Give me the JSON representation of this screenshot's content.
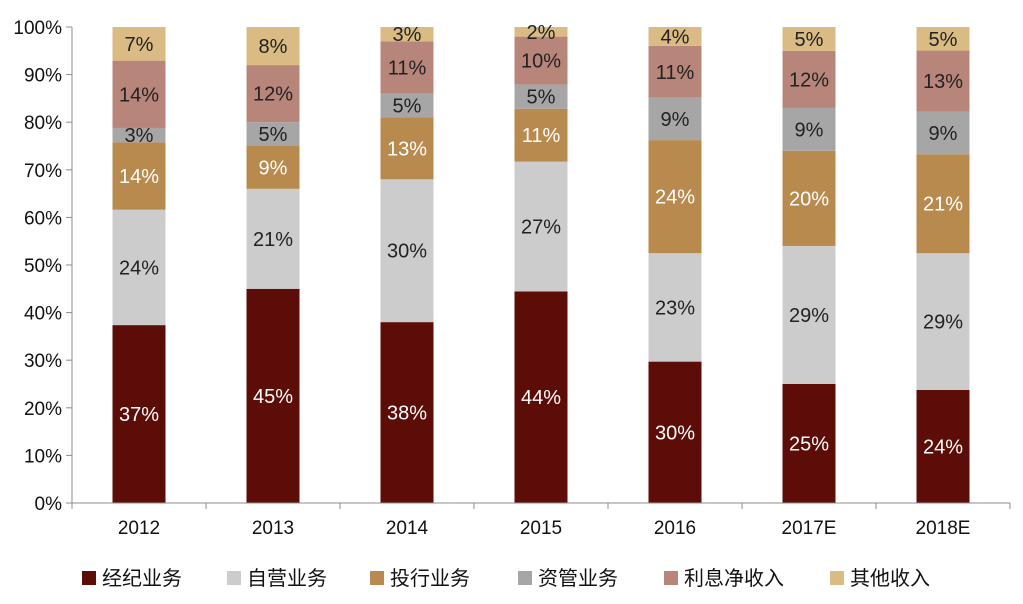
{
  "chart_data": {
    "type": "bar",
    "stacked": true,
    "categories": [
      "2012",
      "2013",
      "2014",
      "2015",
      "2016",
      "2017E",
      "2018E"
    ],
    "series": [
      {
        "name": "经纪业务",
        "color": "#5c0d08",
        "label_color": "#ffffff",
        "values": [
          37,
          45,
          38,
          44,
          30,
          25,
          24
        ]
      },
      {
        "name": "自营业务",
        "color": "#cccccc",
        "label_color": "#222222",
        "values": [
          24,
          21,
          30,
          27,
          23,
          29,
          29
        ]
      },
      {
        "name": "投行业务",
        "color": "#b88a4e",
        "label_color": "#ffffff",
        "values": [
          14,
          9,
          13,
          11,
          24,
          20,
          21
        ]
      },
      {
        "name": "资管业务",
        "color": "#a6a6a6",
        "label_color": "#222222",
        "values": [
          3,
          5,
          5,
          5,
          9,
          9,
          9
        ]
      },
      {
        "name": "利息净收入",
        "color": "#b7857a",
        "label_color": "#222222",
        "values": [
          14,
          12,
          11,
          10,
          11,
          12,
          13
        ]
      },
      {
        "name": "其他收入",
        "color": "#d9bb83",
        "label_color": "#222222",
        "values": [
          7,
          8,
          3,
          2,
          4,
          5,
          5
        ]
      }
    ],
    "data_labels": [
      [
        "37%",
        "45%",
        "38%",
        "44%",
        "30%",
        "25%",
        "24%"
      ],
      [
        "24%",
        "21%",
        "30%",
        "27%",
        "23%",
        "29%",
        "29%"
      ],
      [
        "14%",
        "9%",
        "13%",
        "11%",
        "24%",
        "20%",
        "21%"
      ],
      [
        "3%",
        "5%",
        "5%",
        "5%",
        "9%",
        "9%",
        "9%"
      ],
      [
        "14%",
        "12%",
        "11%",
        "10%",
        "11%",
        "12%",
        "13%"
      ],
      [
        "7%",
        "8%",
        "3%",
        "2%",
        "4%",
        "5%",
        "5%"
      ]
    ],
    "y_ticks": [
      "0%",
      "10%",
      "20%",
      "30%",
      "40%",
      "50%",
      "60%",
      "70%",
      "80%",
      "90%",
      "100%"
    ],
    "ylim": [
      0,
      100
    ],
    "grid": false,
    "legend_position": "bottom"
  }
}
